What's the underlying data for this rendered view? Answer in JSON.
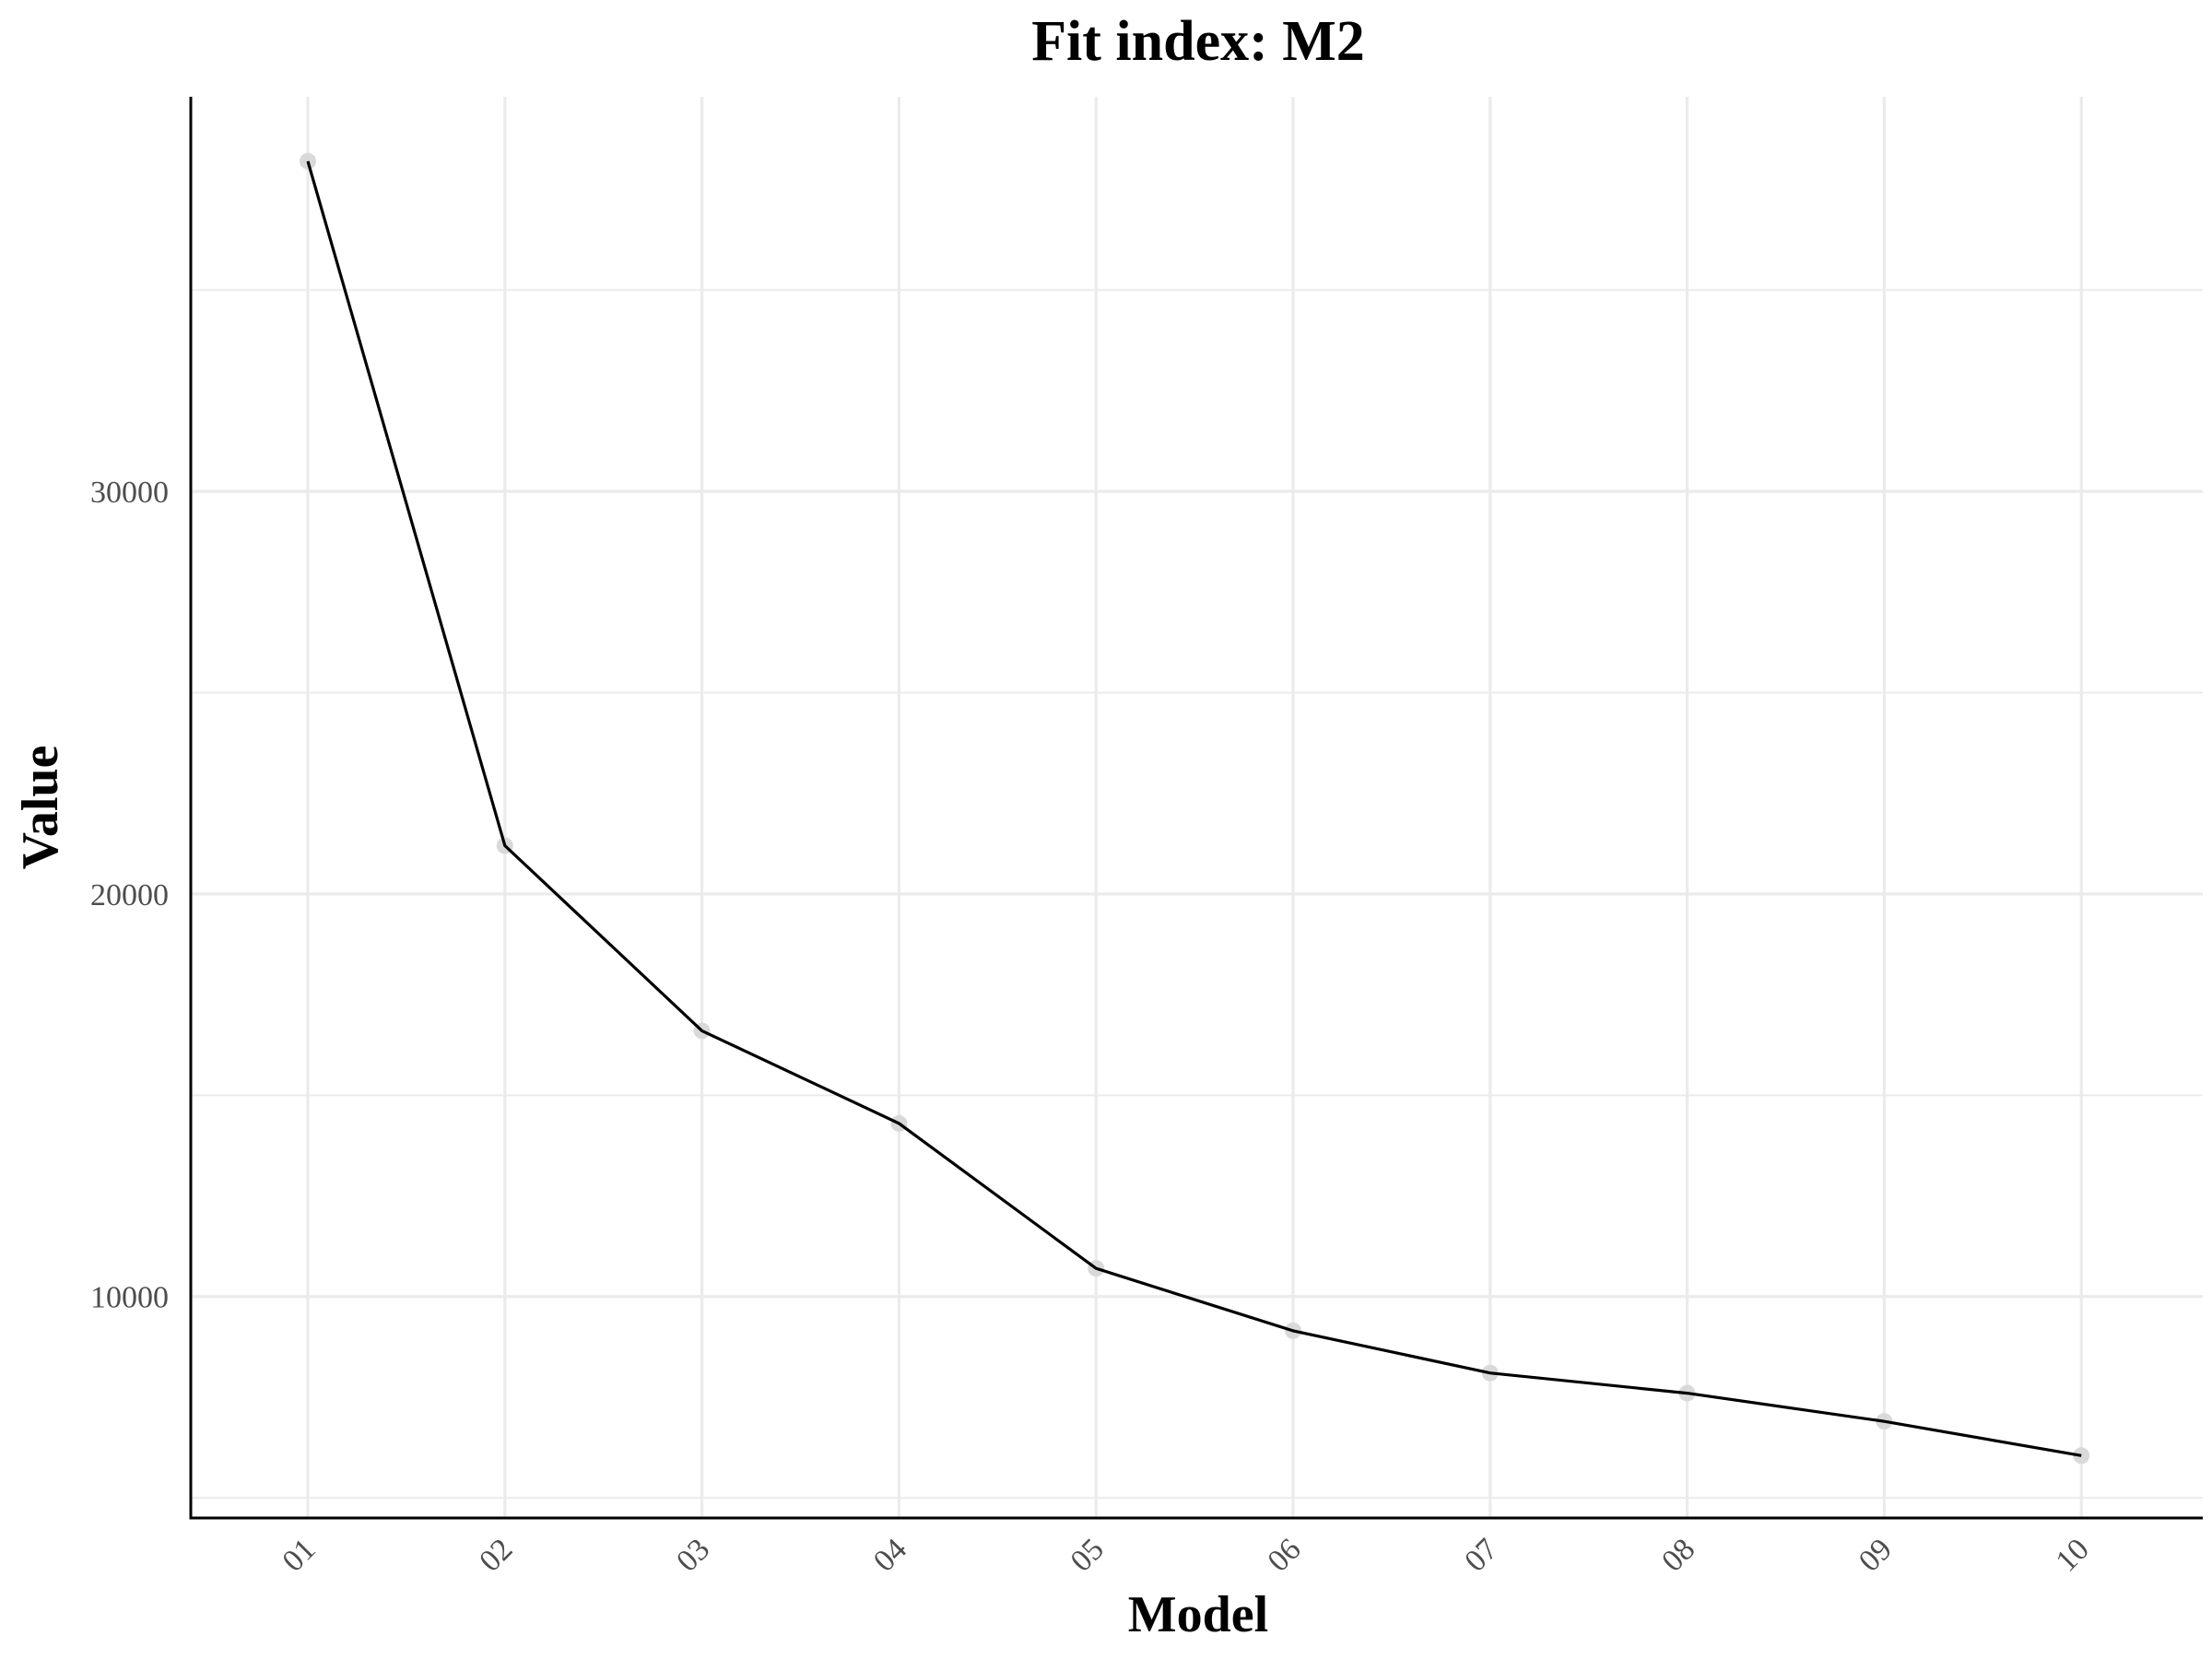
{
  "chart_data": {
    "type": "line",
    "title": "Fit index: M2",
    "xlabel": "Model",
    "ylabel": "Value",
    "categories": [
      "01",
      "02",
      "03",
      "04",
      "05",
      "06",
      "07",
      "08",
      "09",
      "10"
    ],
    "values": [
      38200,
      21200,
      16600,
      14300,
      10700,
      9150,
      8100,
      7600,
      6900,
      6050
    ],
    "yticks": [
      10000,
      20000,
      30000
    ],
    "ytick_labels": [
      "10000",
      "20000",
      "30000"
    ],
    "ylim": [
      4500,
      39800
    ],
    "grid": true,
    "legend": "none",
    "colors": {
      "line": "#000000",
      "point": "#d9d9d9",
      "grid": "#ebebeb",
      "tick_text": "#4d4d4d"
    }
  }
}
